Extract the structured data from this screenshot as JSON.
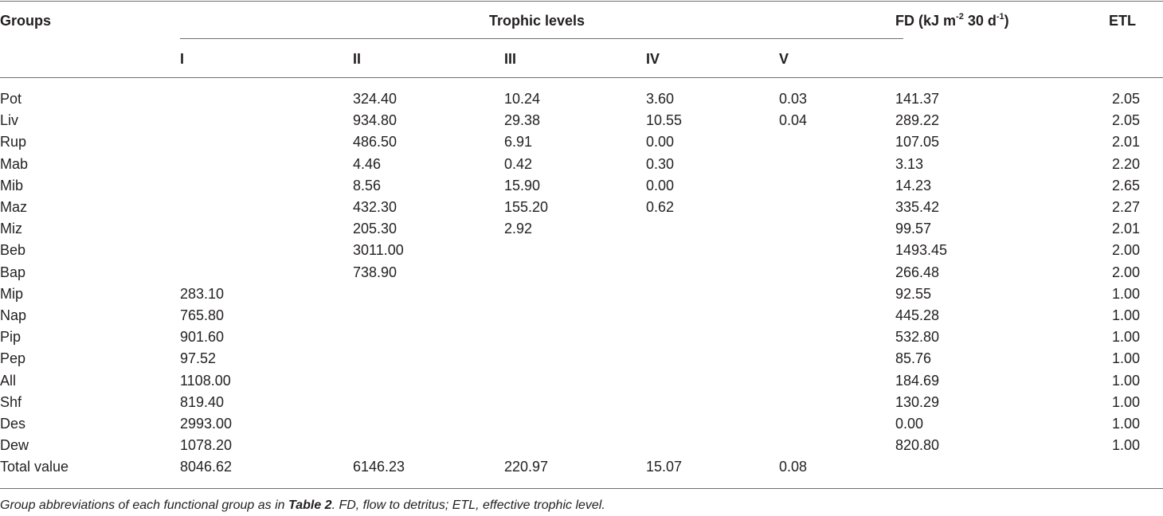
{
  "header": {
    "groups": "Groups",
    "trophic_levels": "Trophic levels",
    "fd_prefix": "FD (kJ m",
    "fd_exp1": "-2",
    "fd_middle": " 30 d",
    "fd_exp2": "-1",
    "fd_suffix": ")",
    "etl": "ETL",
    "levels": [
      "I",
      "II",
      "III",
      "IV",
      "V"
    ]
  },
  "rows": [
    {
      "group": "Pot",
      "I": "",
      "II": "324.40",
      "III": "10.24",
      "IV": "3.60",
      "V": "0.03",
      "FD": "141.37",
      "ETL": "2.05"
    },
    {
      "group": "Liv",
      "I": "",
      "II": "934.80",
      "III": "29.38",
      "IV": "10.55",
      "V": "0.04",
      "FD": "289.22",
      "ETL": "2.05"
    },
    {
      "group": "Rup",
      "I": "",
      "II": "486.50",
      "III": "6.91",
      "IV": "0.00",
      "V": "",
      "FD": "107.05",
      "ETL": "2.01"
    },
    {
      "group": "Mab",
      "I": "",
      "II": "4.46",
      "III": "0.42",
      "IV": "0.30",
      "V": "",
      "FD": "3.13",
      "ETL": "2.20"
    },
    {
      "group": "Mib",
      "I": "",
      "II": "8.56",
      "III": "15.90",
      "IV": "0.00",
      "V": "",
      "FD": "14.23",
      "ETL": "2.65"
    },
    {
      "group": "Maz",
      "I": "",
      "II": "432.30",
      "III": "155.20",
      "IV": "0.62",
      "V": "",
      "FD": "335.42",
      "ETL": "2.27"
    },
    {
      "group": "Miz",
      "I": "",
      "II": "205.30",
      "III": "2.92",
      "IV": "",
      "V": "",
      "FD": "99.57",
      "ETL": "2.01"
    },
    {
      "group": "Beb",
      "I": "",
      "II": "3011.00",
      "III": "",
      "IV": "",
      "V": "",
      "FD": "1493.45",
      "ETL": "2.00"
    },
    {
      "group": "Bap",
      "I": "",
      "II": "738.90",
      "III": "",
      "IV": "",
      "V": "",
      "FD": "266.48",
      "ETL": "2.00"
    },
    {
      "group": "Mip",
      "I": "283.10",
      "II": "",
      "III": "",
      "IV": "",
      "V": "",
      "FD": "92.55",
      "ETL": "1.00"
    },
    {
      "group": "Nap",
      "I": "765.80",
      "II": "",
      "III": "",
      "IV": "",
      "V": "",
      "FD": "445.28",
      "ETL": "1.00"
    },
    {
      "group": "Pip",
      "I": "901.60",
      "II": "",
      "III": "",
      "IV": "",
      "V": "",
      "FD": "532.80",
      "ETL": "1.00"
    },
    {
      "group": "Pep",
      "I": "97.52",
      "II": "",
      "III": "",
      "IV": "",
      "V": "",
      "FD": "85.76",
      "ETL": "1.00"
    },
    {
      "group": "All",
      "I": "1108.00",
      "II": "",
      "III": "",
      "IV": "",
      "V": "",
      "FD": "184.69",
      "ETL": "1.00"
    },
    {
      "group": "Shf",
      "I": "819.40",
      "II": "",
      "III": "",
      "IV": "",
      "V": "",
      "FD": "130.29",
      "ETL": "1.00"
    },
    {
      "group": "Des",
      "I": "2993.00",
      "II": "",
      "III": "",
      "IV": "",
      "V": "",
      "FD": "0.00",
      "ETL": "1.00"
    },
    {
      "group": "Dew",
      "I": "1078.20",
      "II": "",
      "III": "",
      "IV": "",
      "V": "",
      "FD": "820.80",
      "ETL": "1.00"
    },
    {
      "group": "Total value",
      "I": "8046.62",
      "II": "6146.23",
      "III": "220.97",
      "IV": "15.07",
      "V": "0.08",
      "FD": "",
      "ETL": ""
    }
  ],
  "footnote": {
    "part1": "Group abbreviations of each functional group as in ",
    "ref": "Table 2",
    "part2": ". FD, flow to detritus; ETL, effective trophic level."
  }
}
